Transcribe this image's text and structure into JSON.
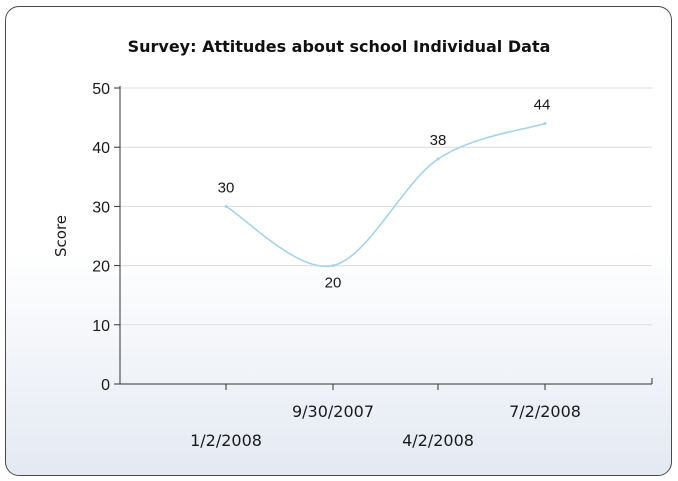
{
  "chart_data": {
    "type": "line",
    "title": "Survey: Attitudes about school Individual Data",
    "xlabel": "",
    "ylabel": "Score",
    "ylim": [
      0,
      50
    ],
    "yticks": [
      0,
      10,
      20,
      30,
      40,
      50
    ],
    "categories": [
      "1/2/2008",
      "9/30/2007",
      "4/2/2008",
      "7/2/2008"
    ],
    "series": [
      {
        "values": [
          30,
          20,
          38,
          44
        ],
        "color": "#a7d3ea"
      }
    ],
    "data_labels": [
      "30",
      "20",
      "38",
      "44"
    ],
    "grid": true,
    "line_style": "smooth"
  }
}
